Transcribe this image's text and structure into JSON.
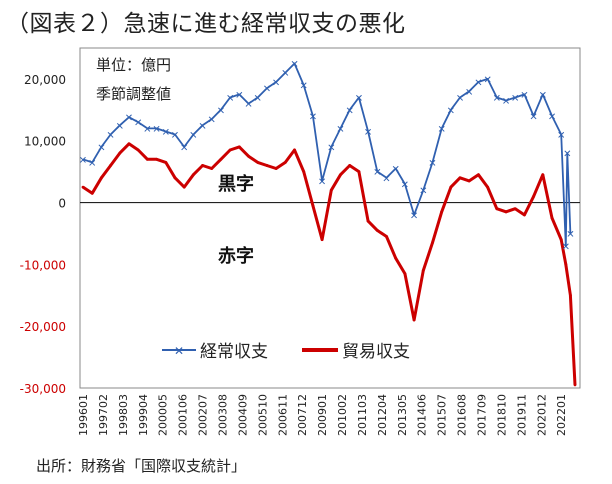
{
  "title": "（図表２）急速に進む経常収支の悪化",
  "source": "出所：財務省「国際収支統計」",
  "colors": {
    "current_account": "#3060b0",
    "trade_balance": "#cc0000",
    "frame": "#888888"
  },
  "chart_data": {
    "type": "line",
    "unit_note": "単位：億円",
    "adjust_note": "季節調整値",
    "region_labels": {
      "surplus": "黒字",
      "deficit": "赤字"
    },
    "ylim": [
      -30000,
      25000
    ],
    "yticks": [
      {
        "value": 20000,
        "label": "20,000"
      },
      {
        "value": 10000,
        "label": "10,000"
      },
      {
        "value": 0,
        "label": "0"
      },
      {
        "value": -10000,
        "label": "-10,000"
      },
      {
        "value": -20000,
        "label": "-20,000"
      },
      {
        "value": -30000,
        "label": "-30,000"
      }
    ],
    "xticks": [
      "199601",
      "199702",
      "199803",
      "199904",
      "200005",
      "200106",
      "200207",
      "200308",
      "200409",
      "200510",
      "200611",
      "200712",
      "200901",
      "201002",
      "201103",
      "201204",
      "201305",
      "201406",
      "201507",
      "201608",
      "201709",
      "201810",
      "201911",
      "202012",
      "202201"
    ],
    "legend": [
      "経常収支",
      "貿易収支"
    ],
    "series": [
      {
        "name": "経常収支",
        "key": "current_account",
        "x": [
          "1996-01",
          "1996-07",
          "1997-01",
          "1997-07",
          "1998-01",
          "1998-07",
          "1999-01",
          "1999-07",
          "2000-01",
          "2000-07",
          "2001-01",
          "2001-07",
          "2002-01",
          "2002-07",
          "2003-01",
          "2003-07",
          "2004-01",
          "2004-07",
          "2005-01",
          "2005-07",
          "2006-01",
          "2006-07",
          "2007-01",
          "2007-07",
          "2008-01",
          "2008-07",
          "2009-01",
          "2009-07",
          "2010-01",
          "2010-07",
          "2011-01",
          "2011-07",
          "2012-01",
          "2012-07",
          "2013-01",
          "2013-07",
          "2014-01",
          "2014-07",
          "2015-01",
          "2015-07",
          "2016-01",
          "2016-07",
          "2017-01",
          "2017-07",
          "2018-01",
          "2018-07",
          "2019-01",
          "2019-07",
          "2020-01",
          "2020-07",
          "2021-01",
          "2021-07",
          "2022-01",
          "2022-04",
          "2022-05",
          "2022-07"
        ],
        "y": [
          7000,
          6500,
          9000,
          11000,
          12500,
          13800,
          13000,
          12000,
          12000,
          11500,
          11000,
          9000,
          11000,
          12500,
          13500,
          15000,
          17000,
          17500,
          16000,
          17000,
          18500,
          19500,
          21000,
          22500,
          19000,
          14000,
          3500,
          9000,
          12000,
          15000,
          17000,
          11500,
          5000,
          4000,
          5500,
          3000,
          -2000,
          2000,
          6500,
          12000,
          15000,
          17000,
          18000,
          19500,
          20000,
          17000,
          16500,
          17000,
          17500,
          14000,
          17500,
          14000,
          11000,
          -7000,
          8000,
          -5000
        ]
      },
      {
        "name": "貿易収支",
        "key": "trade_balance",
        "x": [
          "1996-01",
          "1996-07",
          "1997-01",
          "1997-07",
          "1998-01",
          "1998-07",
          "1999-01",
          "1999-07",
          "2000-01",
          "2000-07",
          "2001-01",
          "2001-07",
          "2002-01",
          "2002-07",
          "2003-01",
          "2003-07",
          "2004-01",
          "2004-07",
          "2005-01",
          "2005-07",
          "2006-01",
          "2006-07",
          "2007-01",
          "2007-07",
          "2008-01",
          "2008-07",
          "2009-01",
          "2009-07",
          "2010-01",
          "2010-07",
          "2011-01",
          "2011-07",
          "2012-01",
          "2012-07",
          "2013-01",
          "2013-07",
          "2014-01",
          "2014-07",
          "2015-01",
          "2015-07",
          "2016-01",
          "2016-07",
          "2017-01",
          "2017-07",
          "2018-01",
          "2018-07",
          "2019-01",
          "2019-07",
          "2020-01",
          "2020-07",
          "2021-01",
          "2021-07",
          "2022-01",
          "2022-04",
          "2022-07",
          "2022-10"
        ],
        "y": [
          2500,
          1500,
          4000,
          6000,
          8000,
          9500,
          8500,
          7000,
          7000,
          6500,
          4000,
          2500,
          4500,
          6000,
          5500,
          7000,
          8500,
          9000,
          7500,
          6500,
          6000,
          5500,
          6500,
          8500,
          5000,
          -500,
          -6000,
          2000,
          4500,
          6000,
          5000,
          -3000,
          -4500,
          -5500,
          -9000,
          -11500,
          -19000,
          -11000,
          -6500,
          -1500,
          2500,
          4000,
          3500,
          4500,
          2500,
          -1000,
          -1500,
          -1000,
          -2000,
          1000,
          4500,
          -2500,
          -6000,
          -10000,
          -15000,
          -29500
        ]
      }
    ]
  }
}
